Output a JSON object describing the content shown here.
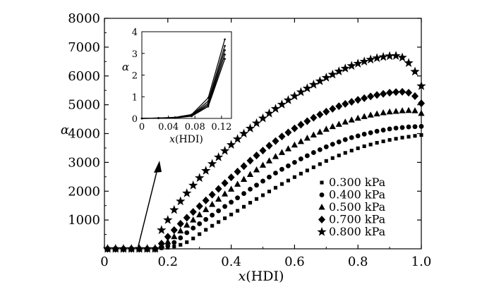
{
  "chart_data": [
    {
      "type": "scatter",
      "id": "main",
      "title": "",
      "xlabel_var": "x",
      "xlabel_rest": "(HDI)",
      "ylabel": "α",
      "xlim": [
        0,
        1.0
      ],
      "ylim": [
        0,
        8000
      ],
      "xticks": [
        0.0,
        0.2,
        0.4,
        0.6,
        0.8,
        1.0
      ],
      "xtick_labels": [
        "0",
        "0.2",
        "0.4",
        "0.6",
        "0.8",
        "1.0"
      ],
      "yticks": [
        1000,
        2000,
        3000,
        4000,
        5000,
        6000,
        7000,
        8000
      ],
      "ytick_labels": [
        "1000",
        "2000",
        "3000",
        "4000",
        "5000",
        "6000",
        "7000",
        "8000"
      ],
      "grid": false,
      "legend_position": "bottom-right",
      "annotation": "arrow pointing from the low-x region toward the inset",
      "series": [
        {
          "name": "0.300 kPa",
          "marker": "square",
          "x": [
            0.01,
            0.035,
            0.06,
            0.085,
            0.11,
            0.135,
            0.16,
            0.18,
            0.2,
            0.22,
            0.24,
            0.26,
            0.28,
            0.3,
            0.32,
            0.34,
            0.36,
            0.38,
            0.4,
            0.42,
            0.44,
            0.46,
            0.48,
            0.5,
            0.52,
            0.54,
            0.56,
            0.58,
            0.6,
            0.62,
            0.64,
            0.66,
            0.68,
            0.7,
            0.72,
            0.74,
            0.76,
            0.78,
            0.8,
            0.82,
            0.84,
            0.86,
            0.88,
            0.9,
            0.92,
            0.94,
            0.96,
            0.98,
            1.0
          ],
          "y": [
            0,
            0,
            0,
            0,
            0,
            0,
            0,
            20,
            40,
            80,
            140,
            230,
            360,
            510,
            660,
            800,
            930,
            1060,
            1190,
            1320,
            1460,
            1600,
            1730,
            1860,
            1990,
            2120,
            2250,
            2370,
            2490,
            2610,
            2720,
            2830,
            2940,
            3050,
            3150,
            3240,
            3330,
            3410,
            3490,
            3560,
            3620,
            3680,
            3730,
            3780,
            3820,
            3860,
            3890,
            3920,
            3950
          ]
        },
        {
          "name": "0.400 kPa",
          "marker": "circle",
          "x": [
            0.01,
            0.035,
            0.06,
            0.085,
            0.11,
            0.135,
            0.16,
            0.18,
            0.2,
            0.22,
            0.24,
            0.26,
            0.28,
            0.3,
            0.32,
            0.34,
            0.36,
            0.38,
            0.4,
            0.42,
            0.44,
            0.46,
            0.48,
            0.5,
            0.52,
            0.54,
            0.56,
            0.58,
            0.6,
            0.62,
            0.64,
            0.66,
            0.68,
            0.7,
            0.72,
            0.74,
            0.76,
            0.78,
            0.8,
            0.82,
            0.84,
            0.86,
            0.88,
            0.9,
            0.92,
            0.94,
            0.96,
            0.98,
            1.0
          ],
          "y": [
            0,
            0,
            0,
            0,
            0,
            0,
            0,
            40,
            100,
            220,
            380,
            560,
            720,
            870,
            1020,
            1170,
            1320,
            1470,
            1620,
            1770,
            1920,
            2070,
            2210,
            2350,
            2490,
            2630,
            2760,
            2880,
            3000,
            3120,
            3230,
            3340,
            3440,
            3540,
            3630,
            3710,
            3790,
            3860,
            3920,
            3980,
            4030,
            4080,
            4120,
            4160,
            4190,
            4210,
            4230,
            4240,
            4250
          ]
        },
        {
          "name": "0.500 kPa",
          "marker": "triangle",
          "x": [
            0.01,
            0.035,
            0.06,
            0.085,
            0.11,
            0.135,
            0.16,
            0.18,
            0.2,
            0.22,
            0.24,
            0.26,
            0.28,
            0.3,
            0.32,
            0.34,
            0.36,
            0.38,
            0.4,
            0.42,
            0.44,
            0.46,
            0.48,
            0.5,
            0.52,
            0.54,
            0.56,
            0.58,
            0.6,
            0.62,
            0.64,
            0.66,
            0.68,
            0.7,
            0.72,
            0.74,
            0.76,
            0.78,
            0.8,
            0.82,
            0.84,
            0.86,
            0.88,
            0.9,
            0.92,
            0.94,
            0.96,
            0.98,
            1.0
          ],
          "y": [
            0,
            0,
            0,
            0,
            0,
            0,
            0,
            120,
            240,
            420,
            620,
            820,
            1000,
            1180,
            1360,
            1540,
            1720,
            1900,
            2070,
            2240,
            2410,
            2580,
            2740,
            2900,
            3050,
            3200,
            3340,
            3470,
            3600,
            3720,
            3840,
            3950,
            4050,
            4150,
            4240,
            4320,
            4400,
            4470,
            4530,
            4590,
            4640,
            4680,
            4720,
            4750,
            4770,
            4790,
            4800,
            4790,
            4700
          ]
        },
        {
          "name": "0.700 kPa",
          "marker": "diamond",
          "x": [
            0.01,
            0.035,
            0.06,
            0.085,
            0.11,
            0.135,
            0.16,
            0.18,
            0.2,
            0.22,
            0.24,
            0.26,
            0.28,
            0.3,
            0.32,
            0.34,
            0.36,
            0.38,
            0.4,
            0.42,
            0.44,
            0.46,
            0.48,
            0.5,
            0.52,
            0.54,
            0.56,
            0.58,
            0.6,
            0.62,
            0.64,
            0.66,
            0.68,
            0.7,
            0.72,
            0.74,
            0.76,
            0.78,
            0.8,
            0.82,
            0.84,
            0.86,
            0.88,
            0.9,
            0.92,
            0.94,
            0.96,
            0.98,
            1.0
          ],
          "y": [
            0,
            0,
            0,
            0,
            0,
            0,
            0,
            180,
            420,
            650,
            870,
            1080,
            1280,
            1480,
            1680,
            1880,
            2080,
            2280,
            2480,
            2680,
            2870,
            3060,
            3240,
            3410,
            3580,
            3740,
            3900,
            4040,
            4180,
            4310,
            4430,
            4550,
            4660,
            4760,
            4860,
            4950,
            5030,
            5100,
            5170,
            5230,
            5290,
            5340,
            5380,
            5420,
            5440,
            5450,
            5420,
            5300,
            5050
          ]
        },
        {
          "name": "0.800 kPa",
          "marker": "star",
          "x": [
            0.01,
            0.035,
            0.06,
            0.085,
            0.11,
            0.135,
            0.16,
            0.18,
            0.2,
            0.22,
            0.24,
            0.26,
            0.28,
            0.3,
            0.32,
            0.34,
            0.36,
            0.38,
            0.4,
            0.42,
            0.44,
            0.46,
            0.48,
            0.5,
            0.52,
            0.54,
            0.56,
            0.58,
            0.6,
            0.62,
            0.64,
            0.66,
            0.68,
            0.7,
            0.72,
            0.74,
            0.76,
            0.78,
            0.8,
            0.82,
            0.84,
            0.86,
            0.88,
            0.9,
            0.92,
            0.94,
            0.96,
            0.98,
            1.0
          ],
          "y": [
            0,
            0,
            0,
            0,
            0,
            0,
            0,
            650,
            1000,
            1350,
            1650,
            1930,
            2200,
            2460,
            2710,
            2950,
            3180,
            3400,
            3610,
            3810,
            4000,
            4180,
            4360,
            4530,
            4700,
            4860,
            5010,
            5160,
            5300,
            5440,
            5570,
            5700,
            5820,
            5940,
            6050,
            6160,
            6260,
            6350,
            6430,
            6500,
            6570,
            6620,
            6660,
            6690,
            6700,
            6640,
            6450,
            6150,
            5650
          ]
        }
      ]
    },
    {
      "type": "line",
      "id": "inset",
      "title": "",
      "xlabel_var": "x",
      "xlabel_rest": "(HDI)",
      "ylabel": "α",
      "xlim": [
        0,
        0.135
      ],
      "ylim": [
        0,
        4
      ],
      "xticks": [
        0,
        0.04,
        0.08,
        0.12
      ],
      "xtick_labels": [
        "0",
        "0.04",
        "0.08",
        "0.12"
      ],
      "yticks": [
        0,
        1,
        2,
        3,
        4
      ],
      "ytick_labels": [
        "0",
        "1",
        "2",
        "3",
        "4"
      ],
      "grid": false,
      "series": [
        {
          "name": "0.300 kPa",
          "x": [
            0,
            0.025,
            0.05,
            0.075,
            0.1,
            0.125
          ],
          "y": [
            0,
            0.01,
            0.02,
            0.1,
            0.55,
            2.75
          ]
        },
        {
          "name": "0.400 kPa",
          "x": [
            0,
            0.025,
            0.05,
            0.075,
            0.1,
            0.125
          ],
          "y": [
            0,
            0.01,
            0.03,
            0.12,
            0.62,
            2.95
          ]
        },
        {
          "name": "0.500 kPa",
          "x": [
            0,
            0.025,
            0.05,
            0.075,
            0.1,
            0.125
          ],
          "y": [
            0,
            0.01,
            0.03,
            0.13,
            0.7,
            3.15
          ]
        },
        {
          "name": "0.700 kPa",
          "x": [
            0,
            0.025,
            0.05,
            0.075,
            0.1,
            0.125
          ],
          "y": [
            0,
            0.02,
            0.04,
            0.15,
            0.8,
            3.35
          ]
        },
        {
          "name": "0.800 kPa",
          "x": [
            0,
            0.025,
            0.05,
            0.075,
            0.1,
            0.125
          ],
          "y": [
            0,
            0.02,
            0.05,
            0.18,
            0.95,
            3.65
          ]
        }
      ]
    }
  ],
  "colors": {
    "ink": "#000000",
    "background": "#ffffff"
  }
}
